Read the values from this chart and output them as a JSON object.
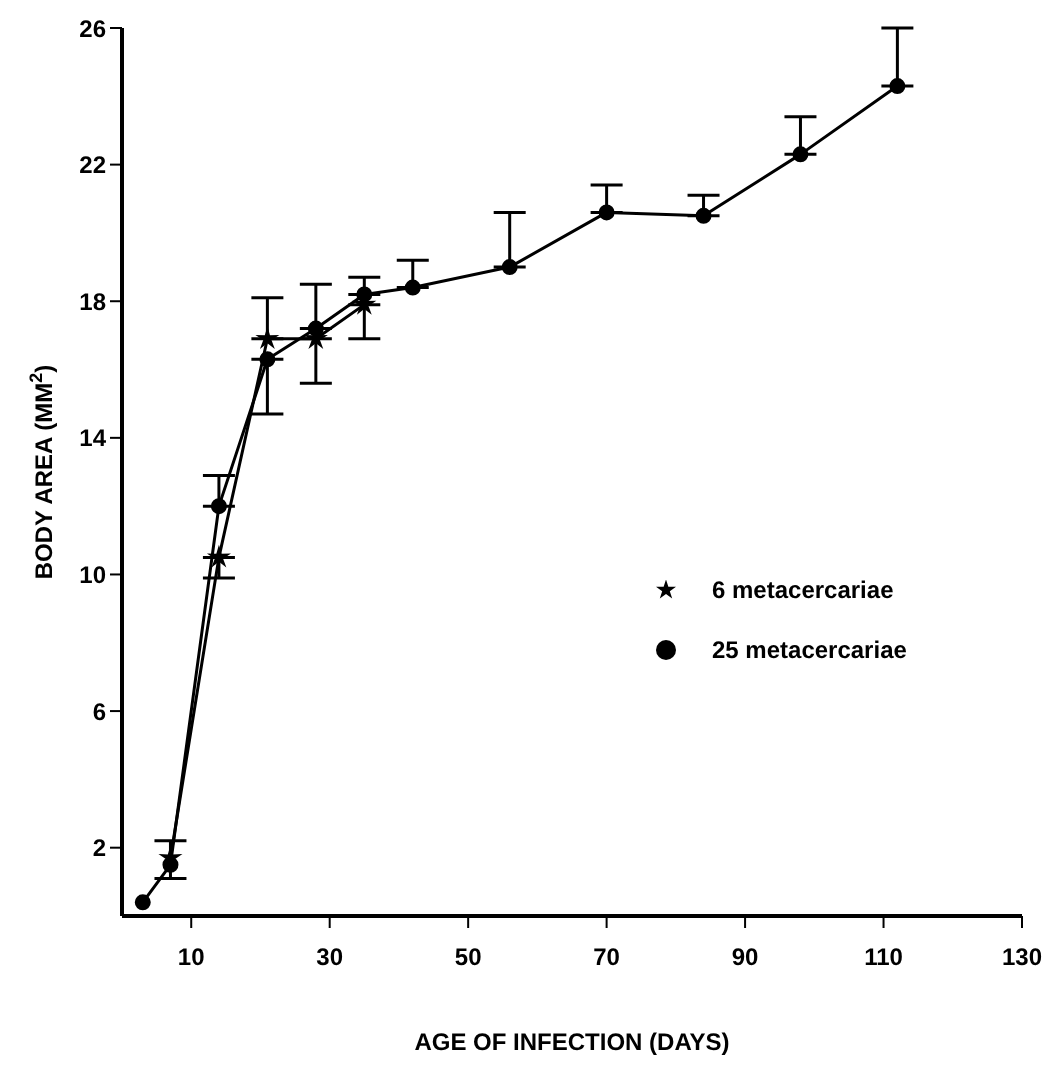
{
  "chart_data": {
    "type": "line",
    "xlabel": "AGE OF INFECTION (DAYS)",
    "ylabel": "BODY AREA (MM$^{2}$)",
    "xlim": [
      0,
      130
    ],
    "xticks": [
      10,
      30,
      50,
      70,
      90,
      110,
      130
    ],
    "ylim": [
      0,
      26
    ],
    "yticks": [
      2,
      6,
      10,
      14,
      18,
      22,
      26
    ],
    "grid": false,
    "legend": "right",
    "line_style": "solid",
    "series": [
      {
        "name": "6 metacercariae",
        "color": "#000000",
        "marker": "star",
        "x": [
          7,
          14,
          21,
          28,
          35
        ],
        "values": [
          1.7,
          10.5,
          16.9,
          16.9,
          17.9
        ],
        "errors": [
          null,
          [
            9.9,
            10.5
          ],
          [
            16.9,
            18.1
          ],
          [
            15.6,
            16.9
          ],
          [
            16.9,
            17.9
          ]
        ]
      },
      {
        "name": "25 metacercariae",
        "color": "#000000",
        "marker": "circle",
        "x": [
          3,
          7,
          14,
          21,
          28,
          35,
          42,
          56,
          70,
          84,
          98,
          112
        ],
        "values": [
          0.4,
          1.5,
          12.0,
          16.3,
          17.2,
          18.2,
          18.4,
          19.0,
          20.6,
          20.5,
          22.3,
          24.3
        ],
        "errors": [
          null,
          [
            1.1,
            2.2
          ],
          [
            12.0,
            12.9
          ],
          [
            14.7,
            16.3
          ],
          [
            17.2,
            18.5
          ],
          [
            18.2,
            18.7
          ],
          [
            18.4,
            19.2
          ],
          [
            19.0,
            20.6
          ],
          [
            20.6,
            21.4
          ],
          [
            20.5,
            21.1
          ],
          [
            22.3,
            23.4
          ],
          [
            24.3,
            26
          ]
        ]
      }
    ]
  }
}
